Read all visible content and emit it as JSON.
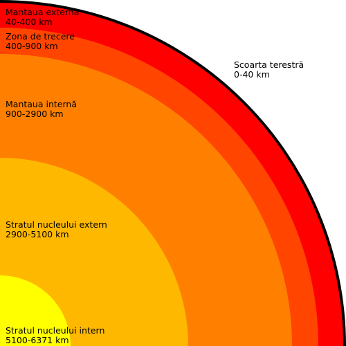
{
  "layers": [
    {
      "id": "crust",
      "name": "Scoarta terestră",
      "range": "0-40 km",
      "inner_km": 0,
      "outer_km": 40,
      "color": "#000000"
    },
    {
      "id": "upper-mantle",
      "name": "Mantaua externa",
      "range": "40-400 km",
      "inner_km": 40,
      "outer_km": 400,
      "color": "#ff0000"
    },
    {
      "id": "transition-zone",
      "name": "Zona de trecere",
      "range": "400-900 km",
      "inner_km": 400,
      "outer_km": 900,
      "color": "#ff4500"
    },
    {
      "id": "lower-mantle",
      "name": "Mantaua internă",
      "range": "900-2900 km",
      "inner_km": 900,
      "outer_km": 2900,
      "color": "#ff8000"
    },
    {
      "id": "outer-core",
      "name": "Stratul nucleului extern",
      "range": "2900-5100 km",
      "inner_km": 2900,
      "outer_km": 5100,
      "color": "#ffb800"
    },
    {
      "id": "inner-core",
      "name": "Stratul nucleului intern",
      "range": "5100-6371 km",
      "inner_km": 5100,
      "outer_km": 6371,
      "color": "#ffff00"
    }
  ]
}
